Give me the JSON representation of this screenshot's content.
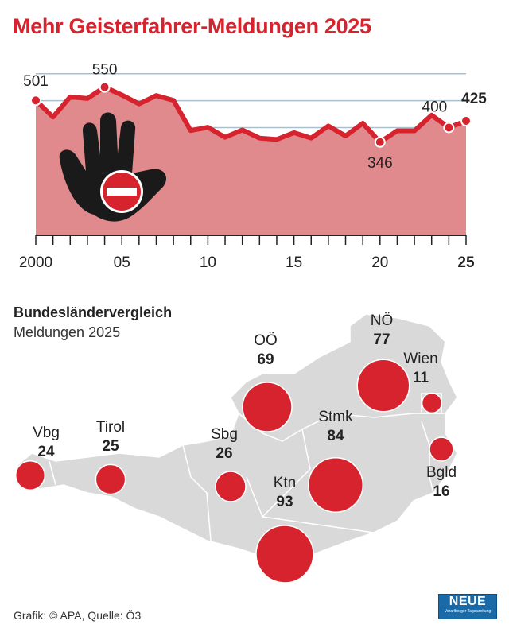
{
  "title": "Mehr Geisterfahrer-Meldungen 2025",
  "chart_data": [
    {
      "type": "area",
      "title": "Mehr Geisterfahrer-Meldungen 2025",
      "x": [
        2000,
        2001,
        2002,
        2003,
        2004,
        2005,
        2006,
        2007,
        2008,
        2009,
        2010,
        2011,
        2012,
        2013,
        2014,
        2015,
        2016,
        2017,
        2018,
        2019,
        2020,
        2021,
        2022,
        2023,
        2024,
        2025
      ],
      "values": [
        501,
        439,
        514,
        508,
        550,
        521,
        488,
        519,
        501,
        389,
        401,
        364,
        391,
        361,
        356,
        381,
        361,
        406,
        369,
        416,
        346,
        388,
        388,
        446,
        400,
        425
      ],
      "ylim": [
        0,
        600
      ],
      "grid": true,
      "x_tick_labels": [
        {
          "x": 2000,
          "label": "2000"
        },
        {
          "x": 2005,
          "label": "05"
        },
        {
          "x": 2010,
          "label": "10"
        },
        {
          "x": 2015,
          "label": "15"
        },
        {
          "x": 2020,
          "label": "20"
        },
        {
          "x": 2025,
          "label": "25"
        }
      ],
      "data_labels": [
        {
          "x": 2000,
          "label": "501"
        },
        {
          "x": 2004,
          "label": "550"
        },
        {
          "x": 2020,
          "label": "346"
        },
        {
          "x": 2024,
          "label": "400"
        },
        {
          "x": 2025,
          "label": "425"
        }
      ],
      "colors": {
        "line": "#d7232e",
        "fill": "#e08a8d",
        "grid": "#a9bfcc"
      }
    },
    {
      "type": "bubble-map",
      "title": "Bundesländervergleich",
      "subtitle": "Meldungen 2025",
      "regions": [
        {
          "name": "Vbg",
          "value": 24
        },
        {
          "name": "Tirol",
          "value": 25
        },
        {
          "name": "Sbg",
          "value": 26
        },
        {
          "name": "OÖ",
          "value": 69
        },
        {
          "name": "NÖ",
          "value": 77
        },
        {
          "name": "Wien",
          "value": 11
        },
        {
          "name": "Stmk",
          "value": 84
        },
        {
          "name": "Bgld",
          "value": 16
        },
        {
          "name": "Ktn",
          "value": 93
        }
      ],
      "colors": {
        "bubble": "#d7232e",
        "map": "#d9d9d9"
      }
    }
  ],
  "icon": "stop-hand-no-entry-icon",
  "source": "Grafik: © APA, Quelle: Ö3",
  "logo": {
    "name": "NEUE",
    "tagline": "Vorarlberger Tageszeitung"
  }
}
